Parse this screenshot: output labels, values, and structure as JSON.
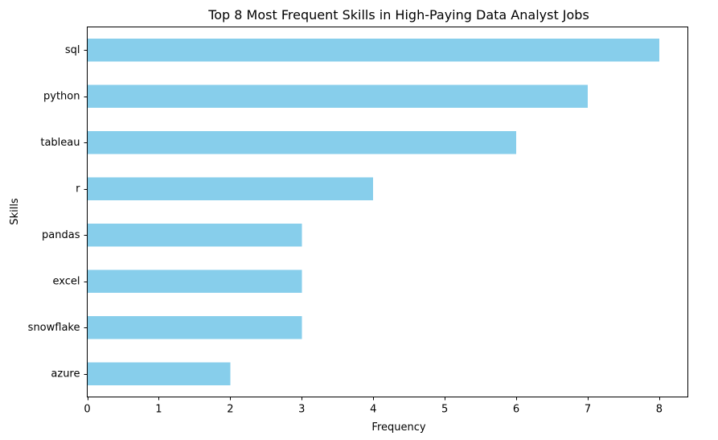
{
  "chart_data": {
    "type": "bar",
    "orientation": "horizontal",
    "title": "Top 8 Most Frequent Skills in High-Paying Data Analyst Jobs",
    "xlabel": "Frequency",
    "ylabel": "Skills",
    "categories": [
      "sql",
      "python",
      "tableau",
      "r",
      "pandas",
      "excel",
      "snowflake",
      "azure"
    ],
    "values": [
      8,
      7,
      6,
      4,
      3,
      3,
      3,
      2
    ],
    "xlim": [
      0,
      8.4
    ],
    "xticks": [
      0,
      1,
      2,
      3,
      4,
      5,
      6,
      7,
      8
    ],
    "bar_color": "#87ceeb",
    "grid": false,
    "legend": "none"
  }
}
